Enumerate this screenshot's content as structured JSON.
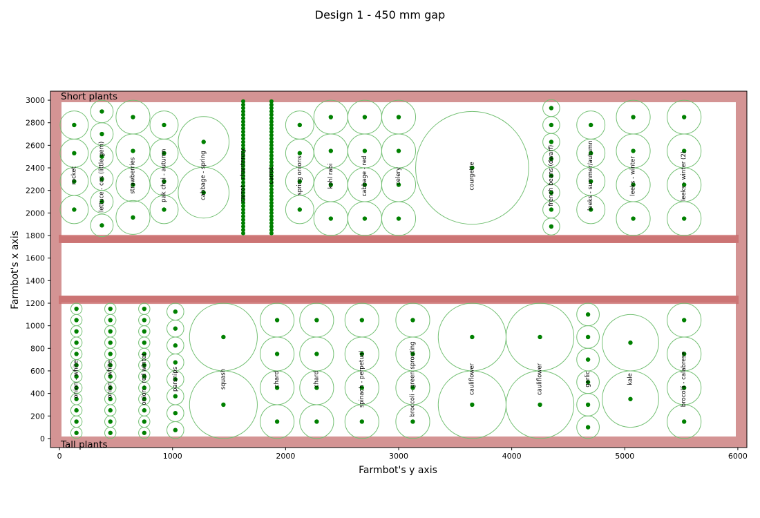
{
  "chart_data": {
    "type": "scatter",
    "title": "Design 1 - 450 mm gap",
    "xlabel": "Farmbot's y axis",
    "ylabel": "Farmbot's x axis",
    "xlim": [
      -80,
      6080
    ],
    "ylim": [
      -80,
      3080
    ],
    "xticks": [
      0,
      1000,
      2000,
      3000,
      4000,
      5000,
      6000
    ],
    "yticks": [
      0,
      200,
      400,
      600,
      800,
      1000,
      1200,
      1400,
      1600,
      1800,
      2000,
      2200,
      2400,
      2600,
      2800,
      3000
    ],
    "grid": false,
    "region_labels": {
      "top": "Short plants",
      "bottom": "Tall plants"
    },
    "colors": {
      "frame": "#d49494",
      "beam": "#c96a6a",
      "point": "#008000",
      "spread": "#74c074"
    },
    "beds": [
      {
        "name": "short",
        "x0": 0,
        "x1": 6000,
        "y0": 1770,
        "y1": 3000
      },
      {
        "name": "tall",
        "x0": 0,
        "x1": 6000,
        "y0": 0,
        "y1": 1230
      }
    ],
    "beams": [
      1770,
      1230
    ],
    "columns": [
      {
        "label": "rocket",
        "x": 130,
        "spread": 250,
        "points": [
          2030,
          2280,
          2530,
          2780
        ]
      },
      {
        "label": "lettuce - cos (little gem)",
        "x": 375,
        "spread": 200,
        "points": [
          1890,
          2100,
          2300,
          2500,
          2700,
          2900
        ]
      },
      {
        "label": "strawberries",
        "x": 650,
        "spread": 300,
        "points": [
          1960,
          2250,
          2550,
          2850
        ]
      },
      {
        "label": "pak choi - autumn",
        "x": 925,
        "spread": 250,
        "points": [
          2030,
          2280,
          2530,
          2780
        ]
      },
      {
        "label": "cabbage - spring",
        "x": 1275,
        "spread": 450,
        "points": [
          2180,
          2630
        ]
      },
      {
        "label": "carrot - chantenay",
        "x": 1625,
        "spread": 0,
        "dense": true,
        "from": 1820,
        "to": 2990,
        "step": 30
      },
      {
        "label": "carrot",
        "x": 1875,
        "spread": 0,
        "dense": true,
        "from": 1820,
        "to": 2990,
        "step": 30
      },
      {
        "label": "spring onions",
        "x": 2125,
        "spread": 250,
        "points": [
          2030,
          2280,
          2530,
          2780
        ]
      },
      {
        "label": "kohl rabi",
        "x": 2400,
        "spread": 300,
        "points": [
          1950,
          2250,
          2550,
          2850
        ]
      },
      {
        "label": "cabbage - red",
        "x": 2700,
        "spread": 300,
        "points": [
          1950,
          2250,
          2550,
          2850
        ]
      },
      {
        "label": "celery",
        "x": 3000,
        "spread": 300,
        "points": [
          1950,
          2250,
          2550,
          2850
        ]
      },
      {
        "label": "courgette",
        "x": 3650,
        "spread": 1000,
        "points": [
          2400
        ]
      },
      {
        "label": "french beans (dwarf)",
        "x": 4350,
        "spread": 150,
        "points": [
          1880,
          2030,
          2180,
          2330,
          2480,
          2630,
          2780,
          2930
        ]
      },
      {
        "label": "leeks - summer/autumn",
        "x": 4700,
        "spread": 250,
        "points": [
          2030,
          2280,
          2530,
          2780
        ]
      },
      {
        "label": "leeks - winter",
        "x": 5075,
        "spread": 300,
        "points": [
          1950,
          2250,
          2550,
          2850
        ]
      },
      {
        "label": "leeks - winter (2)",
        "x": 5525,
        "spread": 300,
        "points": [
          1950,
          2250,
          2550,
          2850
        ]
      },
      {
        "label": "onion - white",
        "x": 150,
        "spread": 100,
        "points": [
          50,
          150,
          250,
          350,
          450,
          550,
          650,
          750,
          850,
          950,
          1050,
          1150
        ]
      },
      {
        "label": "onion - white",
        "x": 450,
        "spread": 100,
        "points": [
          50,
          150,
          250,
          350,
          450,
          550,
          650,
          750,
          850,
          950,
          1050,
          1150
        ]
      },
      {
        "label": "onion - red wintet",
        "x": 750,
        "spread": 100,
        "points": [
          50,
          150,
          250,
          350,
          450,
          550,
          650,
          750,
          850,
          950,
          1050,
          1150
        ]
      },
      {
        "label": "parsnips",
        "x": 1025,
        "spread": 150,
        "points": [
          75,
          225,
          375,
          525,
          675,
          825,
          975,
          1125
        ]
      },
      {
        "label": "squash",
        "x": 1450,
        "spread": 600,
        "points": [
          300,
          900
        ]
      },
      {
        "label": "chard",
        "x": 1925,
        "spread": 300,
        "points": [
          150,
          450,
          750,
          1050
        ]
      },
      {
        "label": "chard",
        "x": 2275,
        "spread": 300,
        "points": [
          150,
          450,
          750,
          1050
        ]
      },
      {
        "label": "spinach - perpetual",
        "x": 2675,
        "spread": 300,
        "points": [
          150,
          450,
          750,
          1050
        ]
      },
      {
        "label": "broccoli - green sprouting",
        "x": 3125,
        "spread": 300,
        "points": [
          150,
          450,
          750,
          1050
        ]
      },
      {
        "label": "cauliflower",
        "x": 3650,
        "spread": 600,
        "points": [
          300,
          900
        ]
      },
      {
        "label": "cauliflower",
        "x": 4250,
        "spread": 600,
        "points": [
          300,
          900
        ]
      },
      {
        "label": "garlic",
        "x": 4675,
        "spread": 200,
        "points": [
          100,
          300,
          500,
          700,
          900,
          1100
        ]
      },
      {
        "label": "kale",
        "x": 5050,
        "spread": 500,
        "points": [
          350,
          850
        ]
      },
      {
        "label": "brocolli - calabrese",
        "x": 5525,
        "spread": 300,
        "points": [
          150,
          450,
          750,
          1050
        ]
      }
    ]
  }
}
